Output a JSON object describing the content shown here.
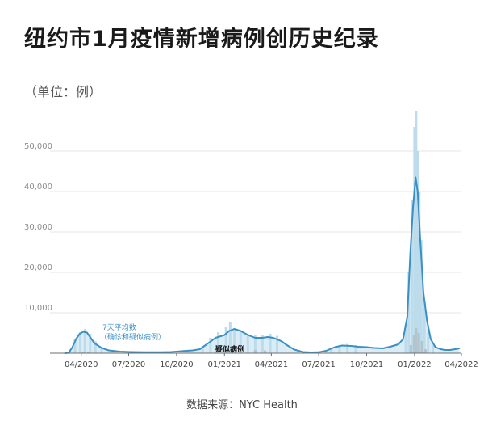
{
  "header": {
    "title": "纽约市1月疫情新增病例创历史纪录",
    "unit_label": "（单位：例）"
  },
  "footer": {
    "source": "数据来源：NYC Health"
  },
  "colors": {
    "avg_line": "#3a8fc4",
    "daily_bars": "#bcdcec",
    "probable_bars": "#a6a6a6",
    "grid": "#e4e4e4",
    "axis": "#6e6e6e"
  },
  "chart_data": {
    "type": "area",
    "title": "纽约市1月疫情新增病例创历史纪录",
    "ylabel": "（单位：例）",
    "ylim": [
      0,
      60000
    ],
    "yticks": [
      10000,
      20000,
      30000,
      40000,
      50000
    ],
    "ytick_labels": [
      "10,000",
      "20,000",
      "30,000",
      "40,000",
      "50,000"
    ],
    "xlim": [
      "2020-02-01",
      "2022-04-01"
    ],
    "xticks": [
      "2020-04-01",
      "2020-07-01",
      "2020-10-01",
      "2021-01-01",
      "2021-04-01",
      "2021-07-01",
      "2021-10-01",
      "2022-01-01",
      "2022-04-01"
    ],
    "xtick_labels": [
      "04/2020",
      "07/2020",
      "10/2020",
      "01/2021",
      "04/2021",
      "07/2021",
      "10/2021",
      "01/2022",
      "04/2022"
    ],
    "grid": true,
    "annotations": [
      {
        "text": "7天平均数",
        "series": "7天平均数（确诊和疑似病例）"
      },
      {
        "text": "（确诊和疑似病例）",
        "series": "7天平均数（确诊和疑似病例）"
      },
      {
        "text": "疑似病例",
        "series": "疑似病例"
      }
    ],
    "series": [
      {
        "name": "7天平均数（确诊和疑似病例）",
        "kind": "line",
        "x": [
          "2020-02-29",
          "2020-03-08",
          "2020-03-15",
          "2020-03-22",
          "2020-03-29",
          "2020-04-05",
          "2020-04-12",
          "2020-04-19",
          "2020-04-26",
          "2020-05-10",
          "2020-05-24",
          "2020-06-14",
          "2020-07-05",
          "2020-08-01",
          "2020-09-01",
          "2020-09-20",
          "2020-10-01",
          "2020-10-15",
          "2020-11-01",
          "2020-11-15",
          "2020-12-01",
          "2020-12-15",
          "2021-01-01",
          "2021-01-10",
          "2021-01-20",
          "2021-02-01",
          "2021-02-15",
          "2021-03-01",
          "2021-03-15",
          "2021-03-25",
          "2021-04-05",
          "2021-04-20",
          "2021-05-01",
          "2021-05-15",
          "2021-06-01",
          "2021-06-15",
          "2021-07-01",
          "2021-07-15",
          "2021-08-01",
          "2021-08-15",
          "2021-09-01",
          "2021-09-15",
          "2021-10-01",
          "2021-10-15",
          "2021-11-01",
          "2021-11-15",
          "2021-12-01",
          "2021-12-10",
          "2021-12-18",
          "2021-12-24",
          "2021-12-29",
          "2022-01-03",
          "2022-01-07",
          "2022-01-12",
          "2022-01-18",
          "2022-01-25",
          "2022-02-01",
          "2022-02-10",
          "2022-02-20",
          "2022-03-01",
          "2022-03-10",
          "2022-03-20",
          "2022-03-28"
        ],
        "values": [
          0,
          100,
          1500,
          3500,
          4800,
          5300,
          5100,
          3800,
          2500,
          1300,
          700,
          400,
          300,
          250,
          250,
          300,
          400,
          550,
          700,
          1000,
          2500,
          3800,
          4500,
          5500,
          6000,
          5500,
          4500,
          3800,
          3800,
          4000,
          3800,
          3000,
          2000,
          900,
          300,
          200,
          250,
          600,
          1500,
          1900,
          1800,
          1600,
          1500,
          1300,
          1200,
          1600,
          2200,
          3500,
          9000,
          25000,
          36000,
          43500,
          40000,
          28000,
          15000,
          8000,
          3500,
          1500,
          1000,
          800,
          800,
          1000,
          1200
        ]
      },
      {
        "name": "确诊和疑似病例",
        "kind": "bars",
        "x": [
          "2020-03-10",
          "2020-03-20",
          "2020-03-30",
          "2020-04-08",
          "2020-04-18",
          "2020-04-28",
          "2020-05-10",
          "2020-11-20",
          "2020-12-05",
          "2020-12-20",
          "2021-01-04",
          "2021-01-12",
          "2021-01-20",
          "2021-02-01",
          "2021-02-15",
          "2021-03-01",
          "2021-03-15",
          "2021-03-30",
          "2021-04-12",
          "2021-07-25",
          "2021-08-10",
          "2021-08-25",
          "2021-09-10",
          "2021-12-15",
          "2021-12-21",
          "2021-12-27",
          "2022-01-01",
          "2022-01-04",
          "2022-01-07",
          "2022-01-10",
          "2022-01-14",
          "2022-01-20",
          "2022-01-27",
          "2022-02-05"
        ],
        "values": [
          1000,
          3500,
          5200,
          6000,
          4800,
          3000,
          1500,
          1800,
          3800,
          5200,
          6500,
          7800,
          6000,
          5600,
          4700,
          4400,
          4500,
          4800,
          4300,
          900,
          2000,
          2300,
          2000,
          7000,
          20000,
          38000,
          56000,
          60000,
          50000,
          40000,
          28000,
          13000,
          5000,
          2000
        ]
      },
      {
        "name": "疑似病例",
        "kind": "bars",
        "x": [
          "2020-04-05",
          "2020-04-15",
          "2020-12-15",
          "2021-01-05",
          "2021-01-15",
          "2021-02-01",
          "2021-03-01",
          "2021-03-20",
          "2021-12-25",
          "2021-12-31",
          "2022-01-04",
          "2022-01-09",
          "2022-01-15",
          "2022-01-22"
        ],
        "values": [
          300,
          250,
          400,
          900,
          1100,
          1000,
          800,
          700,
          2000,
          4500,
          6200,
          5000,
          3000,
          1000
        ]
      }
    ]
  }
}
